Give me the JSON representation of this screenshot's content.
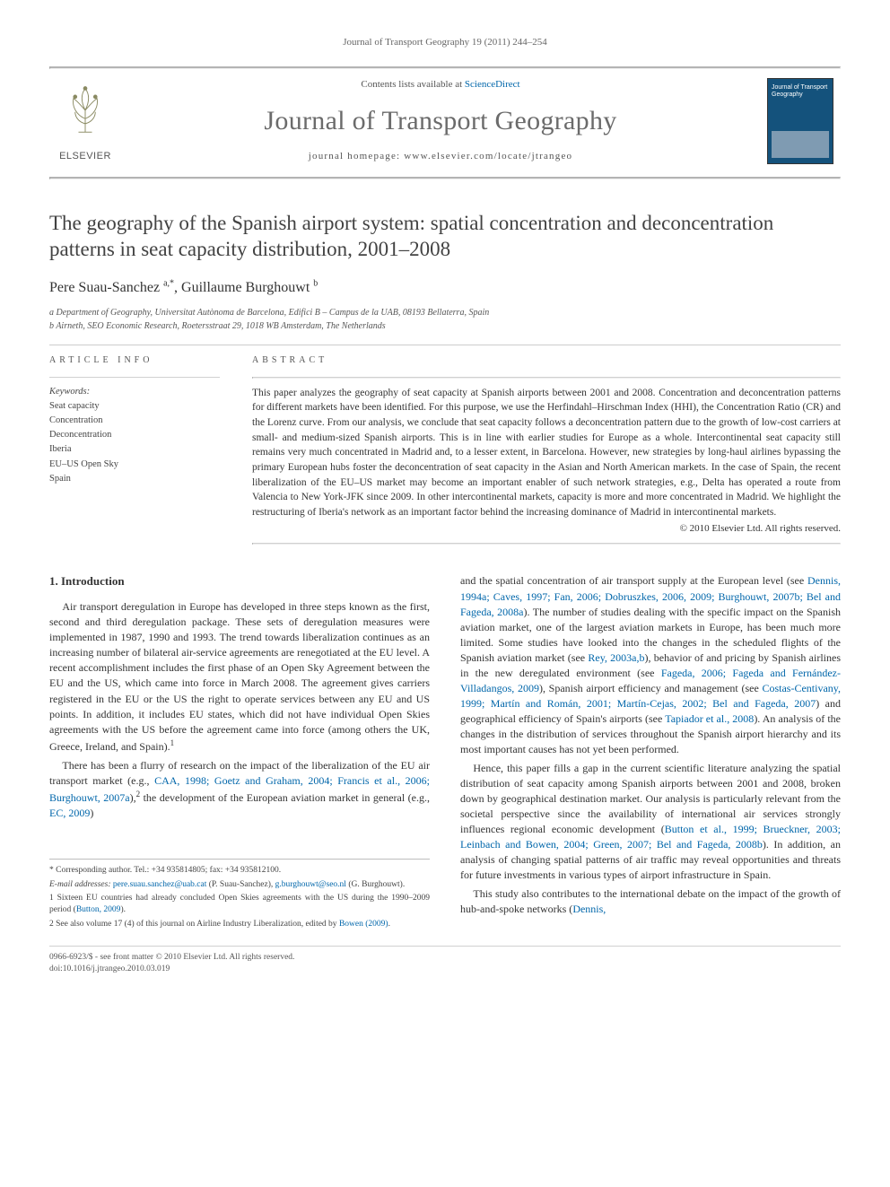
{
  "running_head": "Journal of Transport Geography 19 (2011) 244–254",
  "masthead": {
    "contents_prefix": "Contents lists available at ",
    "contents_link": "ScienceDirect",
    "journal_name": "Journal of Transport Geography",
    "homepage_prefix": "journal homepage: ",
    "homepage_url": "www.elsevier.com/locate/jtrangeo",
    "publisher_word": "ELSEVIER",
    "cover_title": "Journal of Transport Geography"
  },
  "title": "The geography of the Spanish airport system: spatial concentration and deconcentration patterns in seat capacity distribution, 2001–2008",
  "authors_html": "Pere Suau-Sanchez <sup>a,*</sup>, Guillaume Burghouwt <sup>b</sup>",
  "affiliations": [
    "a Department of Geography, Universitat Autònoma de Barcelona, Edifici B – Campus de la UAB, 08193 Bellaterra, Spain",
    "b Airneth, SEO Economic Research, Roetersstraat 29, 1018 WB Amsterdam, The Netherlands"
  ],
  "article_info_heading": "ARTICLE INFO",
  "abstract_heading": "ABSTRACT",
  "keywords_label": "Keywords:",
  "keywords": [
    "Seat capacity",
    "Concentration",
    "Deconcentration",
    "Iberia",
    "EU–US Open Sky",
    "Spain"
  ],
  "abstract": "This paper analyzes the geography of seat capacity at Spanish airports between 2001 and 2008. Concentration and deconcentration patterns for different markets have been identified. For this purpose, we use the Herfindahl–Hirschman Index (HHI), the Concentration Ratio (CR) and the Lorenz curve. From our analysis, we conclude that seat capacity follows a deconcentration pattern due to the growth of low-cost carriers at small- and medium-sized Spanish airports. This is in line with earlier studies for Europe as a whole. Intercontinental seat capacity still remains very much concentrated in Madrid and, to a lesser extent, in Barcelona. However, new strategies by long-haul airlines bypassing the primary European hubs foster the deconcentration of seat capacity in the Asian and North American markets. In the case of Spain, the recent liberalization of the EU–US market may become an important enabler of such network strategies, e.g., Delta has operated a route from Valencia to New York-JFK since 2009. In other intercontinental markets, capacity is more and more concentrated in Madrid. We highlight the restructuring of Iberia's network as an important factor behind the increasing dominance of Madrid in intercontinental markets.",
  "copyright": "© 2010 Elsevier Ltd. All rights reserved.",
  "section1_heading": "1. Introduction",
  "col1_p1": "Air transport deregulation in Europe has developed in three steps known as the first, second and third deregulation package. These sets of deregulation measures were implemented in 1987, 1990 and 1993. The trend towards liberalization continues as an increasing number of bilateral air-service agreements are renegotiated at the EU level. A recent accomplishment includes the first phase of an Open Sky Agreement between the EU and the US, which came into force in March 2008. The agreement gives carriers registered in the EU or the US the right to operate services between any EU and US points. In addition, it includes EU states, which did not have individual Open Skies agreements with the US before the agreement came into force (among others the UK, Greece, Ireland, and Spain).",
  "col1_p1_sup": "1",
  "col1_p2a": "There has been a flurry of research on the impact of the liberalization of the EU air transport market (e.g., ",
  "col1_p2_cite1": "CAA, 1998; Goetz and Graham, 2004; Francis et al., 2006; Burghouwt, 2007a",
  "col1_p2b": "),",
  "col1_p2_sup": "2",
  "col1_p2c": " the development of the European aviation market in general (e.g., ",
  "col1_p2_cite2": "EC, 2009",
  "col1_p2d": ")",
  "col2_p1a": "and the spatial concentration of air transport supply at the European level (see ",
  "col2_p1_cite1": "Dennis, 1994a; Caves, 1997; Fan, 2006; Dobruszkes, 2006, 2009; Burghouwt, 2007b; Bel and Fageda, 2008a",
  "col2_p1b": "). The number of studies dealing with the specific impact on the Spanish aviation market, one of the largest aviation markets in Europe, has been much more limited. Some studies have looked into the changes in the scheduled flights of the Spanish aviation market (see ",
  "col2_p1_cite2": "Rey, 2003a,b",
  "col2_p1c": "), behavior of and pricing by Spanish airlines in the new deregulated environment (see ",
  "col2_p1_cite3": "Fageda, 2006; Fageda and Fernández-Villadangos, 2009",
  "col2_p1d": "), Spanish airport efficiency and management (see ",
  "col2_p1_cite4": "Costas-Centivany, 1999; Martín and Román, 2001; Martín-Cejas, 2002; Bel and Fageda, 2007",
  "col2_p1e": ") and geographical efficiency of Spain's airports (see ",
  "col2_p1_cite5": "Tapiador et al., 2008",
  "col2_p1f": "). An analysis of the changes in the distribution of services throughout the Spanish airport hierarchy and its most important causes has not yet been performed.",
  "col2_p2a": "Hence, this paper fills a gap in the current scientific literature analyzing the spatial distribution of seat capacity among Spanish airports between 2001 and 2008, broken down by geographical destination market. Our analysis is particularly relevant from the societal perspective since the availability of international air services strongly influences regional economic development (",
  "col2_p2_cite1": "Button et al., 1999; Brueckner, 2003; Leinbach and Bowen, 2004; Green, 2007; Bel and Fageda, 2008b",
  "col2_p2b": "). In addition, an analysis of changing spatial patterns of air traffic may reveal opportunities and threats for future investments in various types of airport infrastructure in Spain.",
  "col2_p3a": "This study also contributes to the international debate on the impact of the growth of hub-and-spoke networks (",
  "col2_p3_cite1": "Dennis,",
  "footnotes": {
    "corr_label": "* Corresponding author. Tel.: +34 935814805; fax: +34 935812100.",
    "email_label": "E-mail addresses: ",
    "email1": "pere.suau.sanchez@uab.cat",
    "email1_who": " (P. Suau-Sanchez), ",
    "email2": "g.burghouwt@seo.nl",
    "email2_who": " (G. Burghouwt).",
    "fn1a": "1  Sixteen EU countries had already concluded Open Skies agreements with the US during the 1990–2009 period (",
    "fn1_cite": "Button, 2009",
    "fn1b": ").",
    "fn2a": "2  See also volume 17 (4) of this journal on Airline Industry Liberalization, edited by ",
    "fn2_cite": "Bowen (2009)",
    "fn2b": "."
  },
  "footer": {
    "line1": "0966-6923/$ - see front matter © 2010 Elsevier Ltd. All rights reserved.",
    "line2": "doi:10.1016/j.jtrangeo.2010.03.019"
  },
  "colors": {
    "link": "#0066aa",
    "rule": "#b4b4b4",
    "journal_name": "#6b6b6b",
    "cover_bg": "#14527c"
  }
}
